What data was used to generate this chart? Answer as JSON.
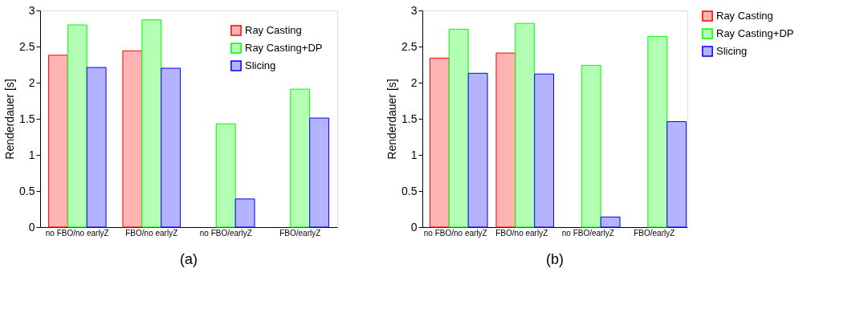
{
  "chart_data": [
    {
      "type": "bar",
      "ylabel": "Renderdauer [s]",
      "categories": [
        "no FBO/no earlyZ",
        "FBO/no earlyZ",
        "no FBO/earlyZ",
        "FBO/earlyZ"
      ],
      "ylim": [
        0,
        3
      ],
      "yticks": [
        0,
        0.5,
        1,
        1.5,
        2,
        2.5,
        3
      ],
      "legend": "top right",
      "grid": false,
      "annotations": [
        "(a)"
      ],
      "series": [
        {
          "name": "Ray Casting",
          "color": "#ffb3b3",
          "values": [
            2.38,
            2.44,
            0,
            0
          ]
        },
        {
          "name": "Ray Casting+DP",
          "color": "#b3ffb3",
          "values": [
            2.8,
            2.87,
            1.43,
            1.91
          ]
        },
        {
          "name": "Slicing",
          "color": "#b3b3ff",
          "values": [
            2.21,
            2.2,
            0.39,
            1.51
          ]
        }
      ]
    },
    {
      "type": "bar",
      "ylabel": "Renderdauer [s]",
      "categories": [
        "no FBO/no earlyZ",
        "FBO/no earlyZ",
        "no FBO/earlyZ",
        "FBO/earlyZ"
      ],
      "ylim": [
        0,
        3
      ],
      "yticks": [
        0,
        0.5,
        1,
        1.5,
        2,
        2.5,
        3
      ],
      "legend": "right",
      "grid": false,
      "annotations": [
        "(b)"
      ],
      "series": [
        {
          "name": "Ray Casting",
          "color": "#ffb3b3",
          "values": [
            2.34,
            2.41,
            0,
            0
          ]
        },
        {
          "name": "Ray Casting+DP",
          "color": "#b3ffb3",
          "values": [
            2.74,
            2.82,
            2.24,
            2.64
          ]
        },
        {
          "name": "Slicing",
          "color": "#b3b3ff",
          "values": [
            2.13,
            2.12,
            0.14,
            1.46
          ]
        }
      ]
    }
  ]
}
